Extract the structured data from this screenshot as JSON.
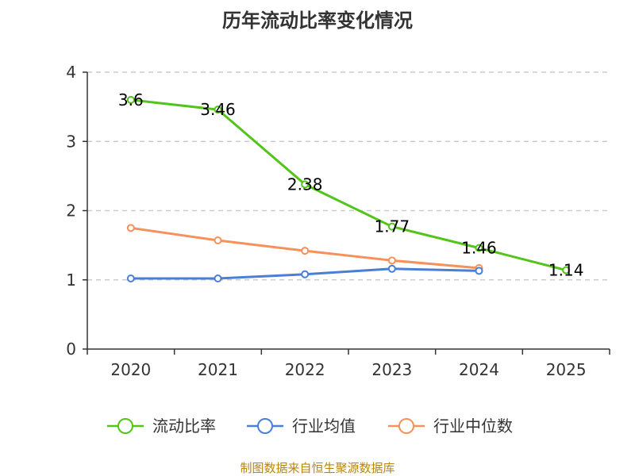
{
  "chart_data": {
    "type": "line",
    "title": "历年流动比率变化情况",
    "categories": [
      "2020",
      "2021",
      "2022",
      "2023",
      "2024",
      "2025"
    ],
    "y_ticks": [
      "0",
      "1",
      "2",
      "3",
      "4"
    ],
    "ylim": [
      0,
      4
    ],
    "grid": true,
    "legend_position": "bottom",
    "series": [
      {
        "name": "流动比率",
        "color": "#52c41a",
        "values": [
          3.6,
          3.46,
          2.38,
          1.77,
          1.46,
          1.14
        ],
        "labels": [
          "3.6",
          "3.46",
          "2.38",
          "1.77",
          "1.46",
          "1.14"
        ]
      },
      {
        "name": "行业均值",
        "color": "#4a7fd8",
        "values": [
          1.02,
          1.02,
          1.08,
          1.16,
          1.13,
          null
        ]
      },
      {
        "name": "行业中位数",
        "color": "#f5915a",
        "values": [
          1.75,
          1.57,
          1.42,
          1.28,
          1.17,
          null
        ]
      }
    ],
    "source": "制图数据来自恒生聚源数据库"
  }
}
